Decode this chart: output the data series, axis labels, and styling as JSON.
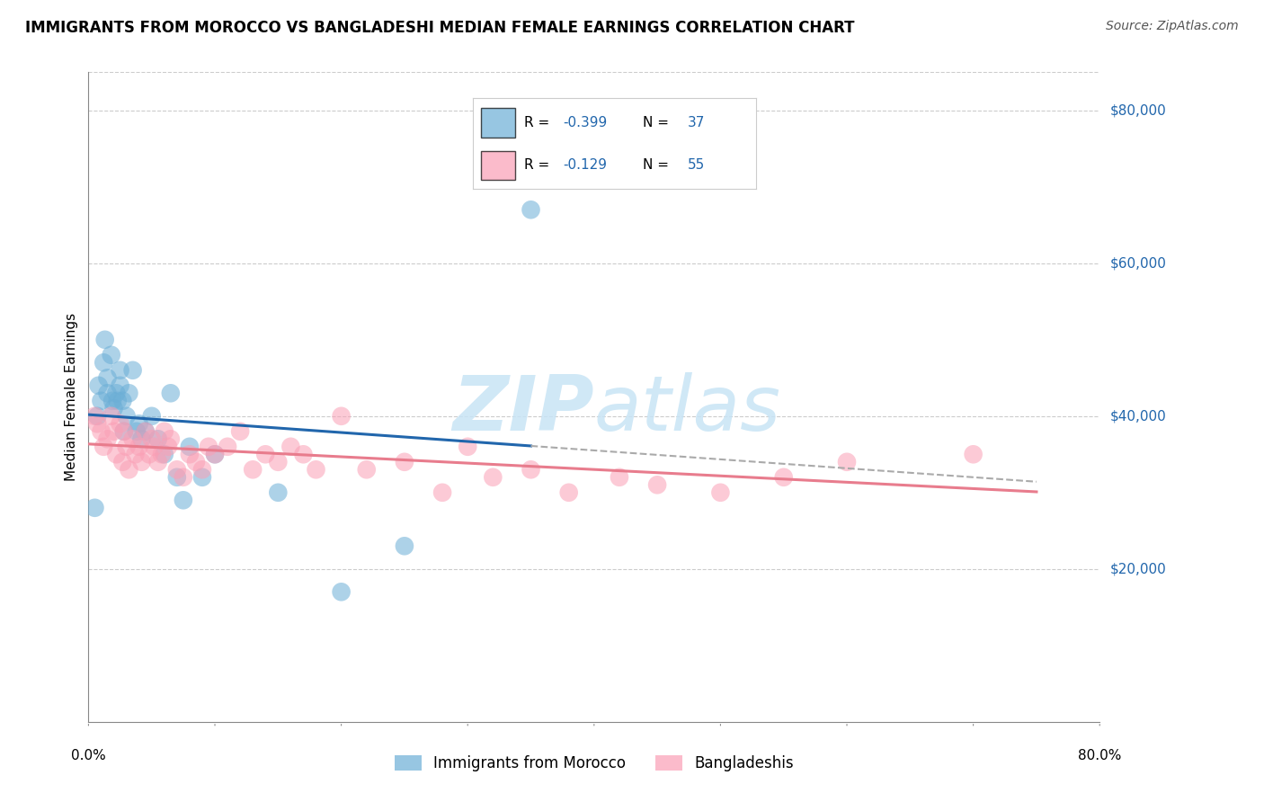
{
  "title": "IMMIGRANTS FROM MOROCCO VS BANGLADESHI MEDIAN FEMALE EARNINGS CORRELATION CHART",
  "source": "Source: ZipAtlas.com",
  "ylabel": "Median Female Earnings",
  "xlim": [
    0.0,
    0.8
  ],
  "ylim": [
    0,
    85000
  ],
  "blue_R": -0.399,
  "blue_N": 37,
  "pink_R": -0.129,
  "pink_N": 55,
  "blue_color": "#6baed6",
  "pink_color": "#fa9fb5",
  "blue_line_color": "#2166ac",
  "pink_line_color": "#e87c8d",
  "dash_color": "#aaaaaa",
  "blue_label": "Immigrants from Morocco",
  "pink_label": "Bangladeshis",
  "watermark_color": "#c8e4f5",
  "y_ticks": [
    20000,
    40000,
    60000,
    80000
  ],
  "y_tick_labels": [
    "$20,000",
    "$40,000",
    "$60,000",
    "$80,000"
  ],
  "blue_points_x": [
    0.005,
    0.007,
    0.008,
    0.01,
    0.012,
    0.013,
    0.015,
    0.015,
    0.018,
    0.019,
    0.02,
    0.022,
    0.023,
    0.025,
    0.025,
    0.027,
    0.028,
    0.03,
    0.032,
    0.035,
    0.038,
    0.04,
    0.042,
    0.045,
    0.05,
    0.055,
    0.06,
    0.065,
    0.07,
    0.075,
    0.08,
    0.09,
    0.1,
    0.15,
    0.2,
    0.25,
    0.35
  ],
  "blue_points_y": [
    28000,
    40000,
    44000,
    42000,
    47000,
    50000,
    45000,
    43000,
    48000,
    42000,
    41000,
    43000,
    42000,
    44000,
    46000,
    42000,
    38000,
    40000,
    43000,
    46000,
    38000,
    39000,
    37000,
    38000,
    40000,
    37000,
    35000,
    43000,
    32000,
    29000,
    36000,
    32000,
    35000,
    30000,
    17000,
    23000,
    67000
  ],
  "pink_points_x": [
    0.005,
    0.007,
    0.01,
    0.012,
    0.015,
    0.018,
    0.02,
    0.022,
    0.025,
    0.027,
    0.028,
    0.03,
    0.032,
    0.035,
    0.037,
    0.04,
    0.042,
    0.045,
    0.048,
    0.05,
    0.052,
    0.055,
    0.058,
    0.06,
    0.063,
    0.065,
    0.07,
    0.075,
    0.08,
    0.085,
    0.09,
    0.095,
    0.1,
    0.11,
    0.12,
    0.13,
    0.14,
    0.15,
    0.16,
    0.17,
    0.18,
    0.2,
    0.22,
    0.25,
    0.28,
    0.3,
    0.32,
    0.35,
    0.38,
    0.42,
    0.45,
    0.5,
    0.55,
    0.6,
    0.7
  ],
  "pink_points_y": [
    40000,
    39000,
    38000,
    36000,
    37000,
    40000,
    38000,
    35000,
    39000,
    34000,
    38000,
    36000,
    33000,
    37000,
    35000,
    36000,
    34000,
    38000,
    35000,
    37000,
    36000,
    34000,
    35000,
    38000,
    36000,
    37000,
    33000,
    32000,
    35000,
    34000,
    33000,
    36000,
    35000,
    36000,
    38000,
    33000,
    35000,
    34000,
    36000,
    35000,
    33000,
    40000,
    33000,
    34000,
    30000,
    36000,
    32000,
    33000,
    30000,
    32000,
    31000,
    30000,
    32000,
    34000,
    35000
  ]
}
